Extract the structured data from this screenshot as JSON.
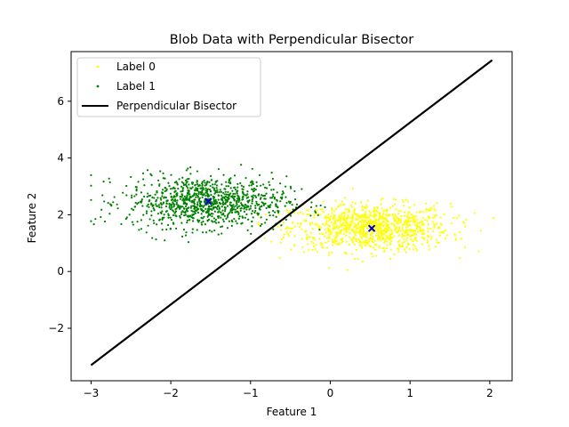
{
  "chart_data": {
    "type": "scatter",
    "title": "Blob Data with Perpendicular Bisector",
    "xlabel": "Feature 1",
    "ylabel": "Feature 2",
    "xlim": [
      -3.25,
      2.28
    ],
    "ylim": [
      -3.85,
      7.75
    ],
    "x_ticks": [
      -3,
      -2,
      -1,
      0,
      1,
      2
    ],
    "y_ticks": [
      -2,
      0,
      2,
      4,
      6
    ],
    "grid": false,
    "legend_position": "top-left",
    "series": [
      {
        "name": "Label 0",
        "kind": "scatter",
        "color": "#ffff00",
        "n_points": 1000,
        "center": [
          0.5,
          1.55
        ],
        "spread": [
          0.5,
          0.42
        ],
        "x_range": [
          -0.9,
          2.05
        ],
        "y_range": [
          0.05,
          3.45
        ]
      },
      {
        "name": "Label 1",
        "kind": "scatter",
        "color": "#008000",
        "n_points": 1000,
        "center": [
          -1.55,
          2.45
        ],
        "spread": [
          0.5,
          0.45
        ],
        "x_range": [
          -3.0,
          0.0
        ],
        "y_range": [
          0.9,
          4.05
        ]
      },
      {
        "name": "Perpendicular Bisector",
        "kind": "line",
        "color": "#000000",
        "x": [
          -3.0,
          2.03
        ],
        "y": [
          -3.3,
          7.45
        ]
      }
    ],
    "centroids": {
      "color": "#0000cc",
      "marker": "x",
      "points": [
        {
          "x": -1.53,
          "y": 2.47
        },
        {
          "x": 0.52,
          "y": 1.52
        }
      ]
    }
  }
}
